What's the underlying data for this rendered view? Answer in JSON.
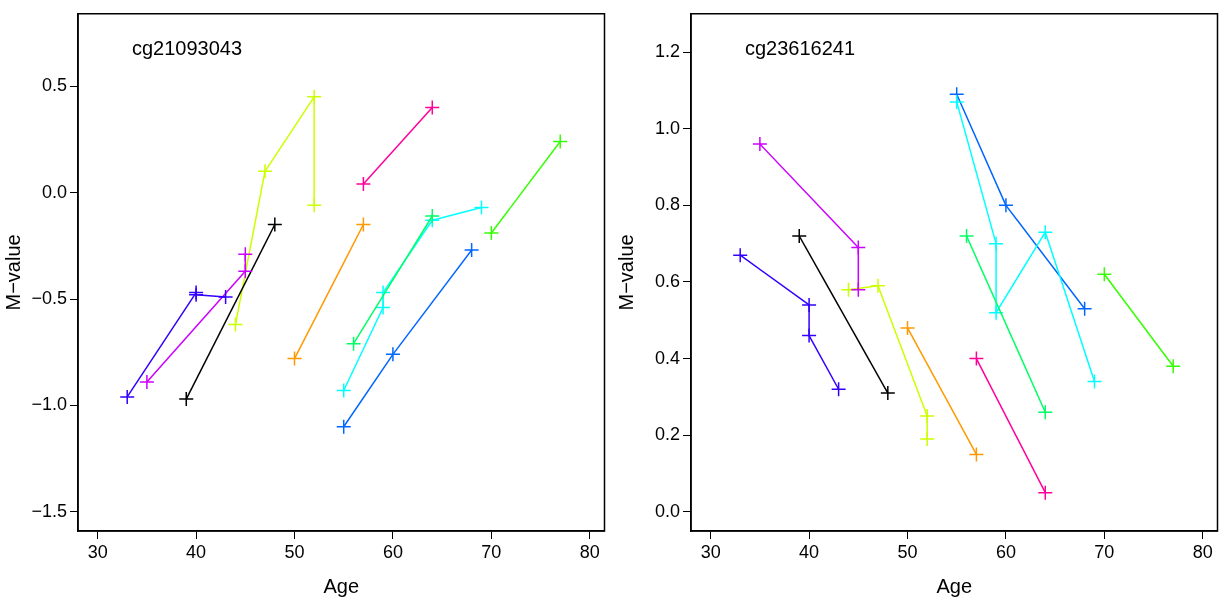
{
  "chart_data": [
    {
      "type": "line",
      "title": "cg21093043",
      "xlabel": "Age",
      "ylabel": "M−value",
      "marker": "cross",
      "line_style": "solid",
      "grid": false,
      "legend": false,
      "xlim": [
        28,
        81.5
      ],
      "xticks": [
        30,
        40,
        50,
        60,
        70,
        80
      ],
      "ylim": [
        -1.59,
        0.84
      ],
      "yticks": [
        {
          "value": -1.5,
          "label": "−1.5"
        },
        {
          "value": -1,
          "label": "−1.0"
        },
        {
          "value": -0.5,
          "label": "−0.5"
        },
        {
          "value": 0,
          "label": "0.0"
        },
        {
          "value": 0.5,
          "label": "0.5"
        }
      ],
      "series": [
        {
          "color": "#3300ff",
          "x": [
            33,
            40,
            40,
            43
          ],
          "values": [
            -0.96,
            -0.47,
            -0.48,
            -0.49
          ]
        },
        {
          "color": "#cc00ff",
          "x": [
            35,
            45,
            45
          ],
          "values": [
            -0.89,
            -0.37,
            -0.29
          ]
        },
        {
          "color": "#000000",
          "x": [
            39,
            48
          ],
          "values": [
            -0.97,
            -0.15
          ]
        },
        {
          "color": "#ccff00",
          "x": [
            44,
            47,
            52,
            52
          ],
          "values": [
            -0.62,
            0.1,
            0.45,
            -0.06
          ]
        },
        {
          "color": "#ff9900",
          "x": [
            50,
            57
          ],
          "values": [
            -0.78,
            -0.15
          ]
        },
        {
          "color": "#ff0099",
          "x": [
            57,
            64
          ],
          "values": [
            0.04,
            0.4
          ]
        },
        {
          "color": "#00ff66",
          "x": [
            56,
            64
          ],
          "values": [
            -0.71,
            -0.11
          ]
        },
        {
          "color": "#00ffff",
          "x": [
            55,
            59,
            59,
            64,
            69
          ],
          "values": [
            -0.93,
            -0.54,
            -0.47,
            -0.13,
            -0.07
          ]
        },
        {
          "color": "#0066ff",
          "x": [
            55,
            60,
            68
          ],
          "values": [
            -1.1,
            -0.76,
            -0.27
          ]
        },
        {
          "color": "#33ff00",
          "x": [
            70,
            77
          ],
          "values": [
            -0.19,
            0.24
          ]
        }
      ]
    },
    {
      "type": "line",
      "title": "cg23616241",
      "xlabel": "Age",
      "ylabel": "M−value",
      "marker": "cross",
      "line_style": "solid",
      "grid": false,
      "legend": false,
      "xlim": [
        28,
        81.5
      ],
      "xticks": [
        30,
        40,
        50,
        60,
        70,
        80
      ],
      "ylim": [
        -0.05,
        1.3
      ],
      "yticks": [
        {
          "value": 0,
          "label": "0.0"
        },
        {
          "value": 0.2,
          "label": "0.2"
        },
        {
          "value": 0.4,
          "label": "0.4"
        },
        {
          "value": 0.6,
          "label": "0.6"
        },
        {
          "value": 0.8,
          "label": "0.8"
        },
        {
          "value": 1,
          "label": "1.0"
        },
        {
          "value": 1.2,
          "label": "1.2"
        }
      ],
      "series": [
        {
          "color": "#3300ff",
          "x": [
            33,
            40,
            40,
            43
          ],
          "values": [
            0.67,
            0.54,
            0.46,
            0.32
          ]
        },
        {
          "color": "#cc00ff",
          "x": [
            35,
            45,
            45
          ],
          "values": [
            0.96,
            0.69,
            0.58
          ]
        },
        {
          "color": "#000000",
          "x": [
            39,
            48
          ],
          "values": [
            0.72,
            0.31
          ]
        },
        {
          "color": "#ccff00",
          "x": [
            44,
            47,
            52,
            52
          ],
          "values": [
            0.58,
            0.59,
            0.25,
            0.19
          ]
        },
        {
          "color": "#ff9900",
          "x": [
            50,
            57
          ],
          "values": [
            0.48,
            0.15
          ]
        },
        {
          "color": "#ff0099",
          "x": [
            57,
            64
          ],
          "values": [
            0.4,
            0.05
          ]
        },
        {
          "color": "#00ff66",
          "x": [
            56,
            64
          ],
          "values": [
            0.72,
            0.26
          ]
        },
        {
          "color": "#00ffff",
          "x": [
            55,
            59,
            59,
            64,
            69
          ],
          "values": [
            1.07,
            0.7,
            0.52,
            0.73,
            0.34
          ]
        },
        {
          "color": "#0066ff",
          "x": [
            55,
            60,
            68
          ],
          "values": [
            1.09,
            0.8,
            0.53
          ]
        },
        {
          "color": "#33ff00",
          "x": [
            70,
            77
          ],
          "values": [
            0.62,
            0.38
          ]
        }
      ]
    }
  ]
}
